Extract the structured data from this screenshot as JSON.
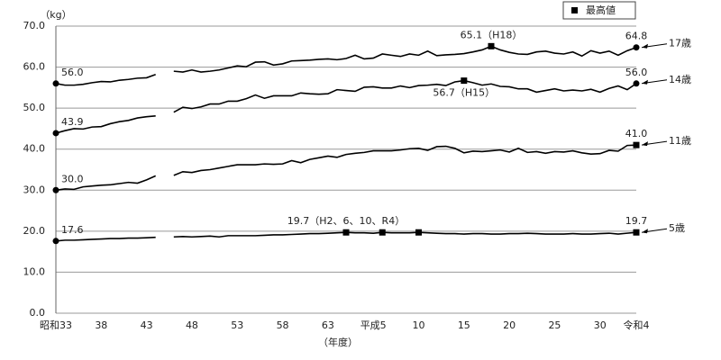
{
  "chart_data": {
    "type": "line",
    "y_unit_label": "（kg）",
    "x_axis_label": "（年度）",
    "legend_label": "最高値",
    "categories": [
      "昭和33",
      null,
      null,
      null,
      null,
      "38",
      null,
      null,
      null,
      null,
      "43",
      null,
      null,
      null,
      null,
      "48",
      null,
      null,
      null,
      null,
      "53",
      null,
      null,
      null,
      null,
      "58",
      null,
      null,
      null,
      null,
      "63",
      null,
      null,
      null,
      null,
      "平成5",
      null,
      null,
      null,
      null,
      "10",
      null,
      null,
      null,
      null,
      "15",
      null,
      null,
      null,
      null,
      "20",
      null,
      null,
      null,
      null,
      "25",
      null,
      null,
      null,
      null,
      "30",
      null,
      null,
      null,
      "令和4"
    ],
    "ylim": [
      0,
      70
    ],
    "yticks": [
      {
        "value": 0,
        "label": "0.0"
      },
      {
        "value": 10,
        "label": "10.0"
      },
      {
        "value": 20,
        "label": "20.0"
      },
      {
        "value": 30,
        "label": "30.0"
      },
      {
        "value": 40,
        "label": "40.0"
      },
      {
        "value": 50,
        "label": "50.0"
      },
      {
        "value": 60,
        "label": "60.0"
      },
      {
        "value": 70,
        "label": "70.0"
      }
    ],
    "grid": true,
    "series": [
      {
        "name": "17歳",
        "color": "#000000",
        "values": [
          56.0,
          55.6,
          55.6,
          55.8,
          56.2,
          56.5,
          56.4,
          56.8,
          57.0,
          57.3,
          57.4,
          58.2,
          null,
          59.0,
          58.8,
          59.3,
          58.8,
          59.0,
          59.3,
          59.8,
          60.3,
          60.1,
          61.2,
          61.3,
          60.5,
          60.8,
          61.5,
          61.6,
          61.7,
          61.9,
          62.0,
          61.8,
          62.1,
          62.9,
          62.0,
          62.2,
          63.2,
          62.9,
          62.6,
          63.2,
          62.9,
          63.9,
          62.8,
          63.0,
          63.1,
          63.3,
          63.7,
          64.2,
          65.1,
          64.2,
          63.6,
          63.2,
          63.1,
          63.7,
          63.9,
          63.4,
          63.2,
          63.7,
          62.7,
          64.0,
          63.4,
          63.9,
          62.9,
          64.0,
          64.8
        ],
        "value_labels": [
          "56.0",
          null,
          null,
          null,
          null,
          null,
          null,
          null,
          null,
          null,
          null,
          null,
          null,
          null,
          null,
          null,
          null,
          null,
          null,
          null,
          null,
          null,
          null,
          null,
          null,
          null,
          null,
          null,
          null,
          null,
          null,
          null,
          null,
          null,
          null,
          null,
          null,
          null,
          null,
          null,
          null,
          null,
          null,
          null,
          null,
          null,
          null,
          null,
          "65.1（H18）",
          null,
          null,
          null,
          null,
          null,
          null,
          null,
          null,
          null,
          null,
          null,
          null,
          null,
          null,
          null,
          "64.8"
        ]
      },
      {
        "name": "14歳",
        "color": "#000000",
        "values": [
          43.9,
          44.5,
          45.0,
          44.9,
          45.4,
          45.5,
          46.2,
          46.7,
          47.0,
          47.6,
          47.9,
          48.1,
          null,
          49.0,
          50.2,
          49.9,
          50.3,
          51.0,
          51.0,
          51.7,
          51.7,
          52.3,
          53.2,
          52.4,
          53.0,
          53.0,
          53.0,
          53.7,
          53.5,
          53.4,
          53.5,
          54.5,
          54.3,
          54.1,
          55.1,
          55.2,
          54.9,
          54.9,
          55.4,
          55.0,
          55.5,
          55.6,
          55.8,
          55.5,
          56.4,
          56.7,
          56.2,
          55.6,
          55.9,
          55.3,
          55.2,
          54.7,
          54.7,
          53.9,
          54.3,
          54.7,
          54.2,
          54.4,
          54.2,
          54.6,
          53.9,
          54.8,
          55.4,
          54.5,
          56.0
        ],
        "value_labels": [
          "43.9",
          null,
          null,
          null,
          null,
          null,
          null,
          null,
          null,
          null,
          null,
          null,
          null,
          null,
          null,
          null,
          null,
          null,
          null,
          null,
          null,
          null,
          null,
          null,
          null,
          null,
          null,
          null,
          null,
          null,
          null,
          null,
          null,
          null,
          null,
          null,
          null,
          null,
          null,
          null,
          null,
          null,
          null,
          null,
          null,
          "56.7（H15）",
          null,
          null,
          null,
          null,
          null,
          null,
          null,
          null,
          null,
          null,
          null,
          null,
          null,
          null,
          null,
          null,
          null,
          null,
          "56.0"
        ]
      },
      {
        "name": "11歳",
        "color": "#000000",
        "values": [
          30.0,
          30.3,
          30.2,
          30.8,
          31.0,
          31.2,
          31.3,
          31.6,
          31.9,
          31.7,
          32.5,
          33.5,
          null,
          33.6,
          34.5,
          34.3,
          34.8,
          35.0,
          35.4,
          35.8,
          36.2,
          36.2,
          36.2,
          36.4,
          36.3,
          36.4,
          37.2,
          36.7,
          37.5,
          37.9,
          38.3,
          38.0,
          38.7,
          39.0,
          39.2,
          39.6,
          39.6,
          39.6,
          39.8,
          40.1,
          40.2,
          39.7,
          40.6,
          40.7,
          40.2,
          39.1,
          39.5,
          39.4,
          39.6,
          39.8,
          39.3,
          40.2,
          39.2,
          39.4,
          39.0,
          39.4,
          39.3,
          39.6,
          39.1,
          38.8,
          38.9,
          39.7,
          39.5,
          40.9,
          41.0
        ],
        "value_labels": [
          "30.0",
          null,
          null,
          null,
          null,
          null,
          null,
          null,
          null,
          null,
          null,
          null,
          null,
          null,
          null,
          null,
          null,
          null,
          null,
          null,
          null,
          null,
          null,
          null,
          null,
          null,
          null,
          null,
          null,
          null,
          null,
          null,
          null,
          null,
          null,
          null,
          null,
          null,
          null,
          null,
          null,
          null,
          null,
          null,
          null,
          null,
          null,
          null,
          null,
          null,
          null,
          null,
          null,
          null,
          null,
          null,
          null,
          null,
          null,
          null,
          null,
          null,
          null,
          null,
          "41.0"
        ]
      },
      {
        "name": "5歳",
        "color": "#000000",
        "values": [
          17.6,
          17.8,
          17.8,
          17.9,
          18.0,
          18.1,
          18.2,
          18.2,
          18.3,
          18.3,
          18.4,
          18.5,
          null,
          18.6,
          18.7,
          18.6,
          18.7,
          18.8,
          18.6,
          18.9,
          18.9,
          18.9,
          18.9,
          19.0,
          19.1,
          19.1,
          19.2,
          19.3,
          19.4,
          19.4,
          19.5,
          19.6,
          19.7,
          19.6,
          19.6,
          19.5,
          19.7,
          19.6,
          19.6,
          19.6,
          19.7,
          19.6,
          19.5,
          19.4,
          19.4,
          19.3,
          19.4,
          19.4,
          19.3,
          19.3,
          19.4,
          19.4,
          19.5,
          19.4,
          19.3,
          19.3,
          19.3,
          19.4,
          19.3,
          19.3,
          19.4,
          19.5,
          19.3,
          19.5,
          19.7
        ],
        "value_labels": [
          "17.6",
          null,
          null,
          null,
          null,
          null,
          null,
          null,
          null,
          null,
          null,
          null,
          null,
          null,
          null,
          null,
          null,
          null,
          null,
          null,
          null,
          null,
          null,
          null,
          null,
          null,
          null,
          null,
          null,
          null,
          null,
          null,
          "19.7（H2、6、10、R4）",
          null,
          null,
          null,
          null,
          null,
          null,
          null,
          null,
          null,
          null,
          null,
          null,
          null,
          null,
          null,
          null,
          null,
          null,
          null,
          null,
          null,
          null,
          null,
          null,
          null,
          null,
          null,
          null,
          null,
          null,
          null,
          "19.7"
        ]
      }
    ]
  }
}
